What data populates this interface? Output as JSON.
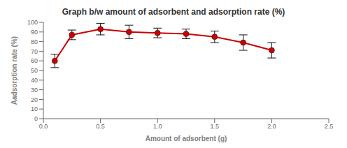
{
  "chart_data": {
    "type": "line",
    "title": "Graph b/w amount of adsorbent and adsorption rate (%)",
    "xlabel": "Amount of adsorbent (g)",
    "ylabel": "Aadsorption rate (%)",
    "x": [
      0.1,
      0.25,
      0.5,
      0.75,
      1.0,
      1.25,
      1.5,
      1.75,
      2.0
    ],
    "values": [
      60,
      87,
      93,
      90,
      89,
      88,
      85,
      79,
      71
    ],
    "yerr": [
      7,
      5,
      6,
      7,
      5,
      5,
      6,
      8,
      8
    ],
    "color": "#cc0000",
    "marker": "circle",
    "xlim": [
      0,
      2.5
    ],
    "ylim": [
      0,
      100
    ],
    "xticks": [
      {
        "value": 0,
        "label": "0.0"
      },
      0.5,
      {
        "value": 1.0,
        "label": "1.0"
      },
      1.5,
      {
        "value": 2.0,
        "label": "2.0"
      },
      2.5
    ],
    "yticks": [
      0,
      10,
      20,
      30,
      40,
      50,
      60,
      70,
      80,
      90,
      100
    ],
    "grid": false
  }
}
